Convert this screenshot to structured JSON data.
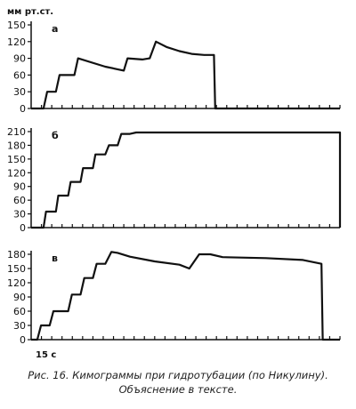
{
  "unit_label": "мм рт.ст.",
  "time_mark": "15 с",
  "caption": {
    "line1": "Рис. 16. Кимограммы при гидротубации (по Никулину).",
    "line2": "Объяснение в тексте."
  },
  "chart_data": [
    {
      "type": "line",
      "panel_label": "а",
      "ylim": [
        0,
        150
      ],
      "y_ticks": [
        0,
        30,
        60,
        90,
        120,
        150
      ],
      "x_ticks_count": 30,
      "points": [
        [
          0,
          0
        ],
        [
          1,
          0
        ],
        [
          1.3,
          30
        ],
        [
          2,
          30
        ],
        [
          2.3,
          60
        ],
        [
          3.5,
          60
        ],
        [
          3.8,
          90
        ],
        [
          6,
          75
        ],
        [
          7.5,
          68
        ],
        [
          7.8,
          90
        ],
        [
          9,
          88
        ],
        [
          9.6,
          90
        ],
        [
          10.1,
          120
        ],
        [
          11,
          110
        ],
        [
          12,
          103
        ],
        [
          13,
          98
        ],
        [
          14,
          96
        ],
        [
          14.8,
          96
        ],
        [
          14.9,
          0
        ],
        [
          25,
          0
        ]
      ]
    },
    {
      "type": "line",
      "panel_label": "б",
      "ylim": [
        0,
        210
      ],
      "y_ticks": [
        0,
        30,
        60,
        90,
        120,
        150,
        180,
        210
      ],
      "x_ticks_count": 30,
      "points": [
        [
          0,
          0
        ],
        [
          1,
          0
        ],
        [
          1.2,
          35
        ],
        [
          2,
          35
        ],
        [
          2.2,
          70
        ],
        [
          3,
          70
        ],
        [
          3.2,
          100
        ],
        [
          4,
          100
        ],
        [
          4.2,
          130
        ],
        [
          5,
          130
        ],
        [
          5.2,
          160
        ],
        [
          6,
          160
        ],
        [
          6.3,
          180
        ],
        [
          7,
          180
        ],
        [
          7.3,
          205
        ],
        [
          8,
          205
        ],
        [
          8.5,
          208
        ],
        [
          25,
          208
        ],
        [
          25,
          0
        ]
      ]
    },
    {
      "type": "line",
      "panel_label": "в",
      "ylim": [
        0,
        180
      ],
      "y_ticks": [
        0,
        30,
        60,
        90,
        120,
        150,
        180
      ],
      "x_ticks_count": 30,
      "points": [
        [
          0,
          0
        ],
        [
          0.5,
          0
        ],
        [
          0.8,
          30
        ],
        [
          1.5,
          30
        ],
        [
          1.8,
          60
        ],
        [
          3,
          60
        ],
        [
          3.3,
          95
        ],
        [
          4,
          95
        ],
        [
          4.3,
          130
        ],
        [
          5,
          130
        ],
        [
          5.3,
          160
        ],
        [
          6,
          160
        ],
        [
          6.5,
          185
        ],
        [
          7,
          183
        ],
        [
          8,
          175
        ],
        [
          10,
          165
        ],
        [
          12,
          158
        ],
        [
          12.8,
          150
        ],
        [
          13.6,
          180
        ],
        [
          14.5,
          180
        ],
        [
          15.5,
          174
        ],
        [
          19,
          172
        ],
        [
          22,
          168
        ],
        [
          23.5,
          160
        ],
        [
          23.6,
          0
        ],
        [
          25,
          0
        ]
      ]
    }
  ]
}
